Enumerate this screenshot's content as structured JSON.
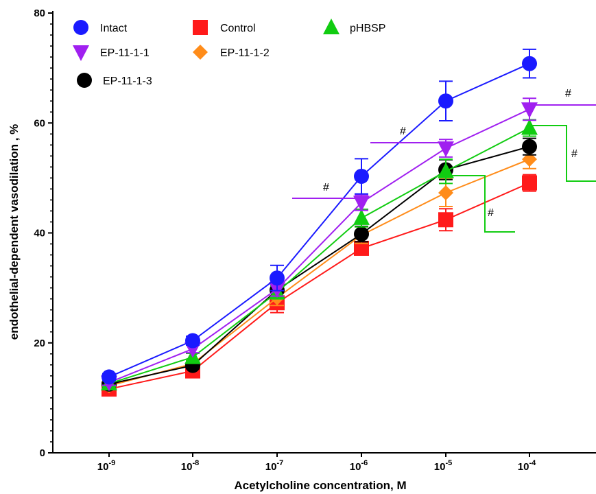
{
  "chart_data": {
    "type": "line",
    "xlabel": "Acetylcholine concentration, M",
    "ylabel": "endothelial-dependent vasodilation , %",
    "ylim": [
      0,
      80
    ],
    "y_ticks": [
      "0",
      "20",
      "40",
      "60",
      "80"
    ],
    "x_ticks": [
      {
        "base": "10",
        "exp": "-9"
      },
      {
        "base": "10",
        "exp": "-8"
      },
      {
        "base": "10",
        "exp": "-7"
      },
      {
        "base": "10",
        "exp": "-6"
      },
      {
        "base": "10",
        "exp": "-5"
      },
      {
        "base": "10",
        "exp": "-4"
      }
    ],
    "x_scale": "log",
    "legend_position": "top-left",
    "series": [
      {
        "name": "Intact",
        "color": "#1a1aff",
        "marker": "circle",
        "values": [
          13.8,
          20.4,
          31.8,
          50.3,
          64.0,
          70.8
        ],
        "errors": [
          0.6,
          0.8,
          2.3,
          3.2,
          3.6,
          2.6
        ]
      },
      {
        "name": "Control",
        "color": "#ff1a1a",
        "marker": "square",
        "values": [
          11.6,
          14.9,
          27.3,
          37.2,
          42.4,
          49.1
        ],
        "errors": [
          0.5,
          0.6,
          1.8,
          1.2,
          2.0,
          1.5
        ]
      },
      {
        "name": "pHBSP",
        "color": "#11cc11",
        "marker": "triangle-up",
        "values": [
          12.6,
          17.4,
          29.2,
          42.7,
          51.2,
          59.1
        ],
        "errors": [
          0.5,
          0.7,
          1.2,
          1.6,
          2.2,
          1.5
        ]
      },
      {
        "name": "EP-11-1-1",
        "color": "#a020f0",
        "marker": "triangle-down",
        "values": [
          12.8,
          18.9,
          29.8,
          45.5,
          55.4,
          62.5
        ],
        "errors": [
          0.5,
          0.7,
          1.3,
          1.4,
          1.6,
          2.0
        ]
      },
      {
        "name": "EP-11-1-2",
        "color": "#ff8c1a",
        "marker": "diamond",
        "values": [
          12.2,
          16.2,
          28.2,
          39.6,
          47.3,
          53.4
        ],
        "errors": [
          0.5,
          0.6,
          1.4,
          1.5,
          2.5,
          1.7
        ]
      },
      {
        "name": "EP-11-1-3",
        "color": "#000000",
        "marker": "circle",
        "values": [
          12.5,
          15.9,
          29.6,
          39.8,
          51.5,
          55.7
        ],
        "errors": [
          0.5,
          0.6,
          1.3,
          1.4,
          1.8,
          1.5
        ]
      }
    ],
    "annotations": [
      {
        "text": "#",
        "color": "#a020f0",
        "x_index": 3,
        "y": 46.2
      },
      {
        "text": "#",
        "color": "#a020f0",
        "x_index": 4,
        "y": 56.4
      },
      {
        "text": "#",
        "color": "#a020f0",
        "x_index": 5,
        "y": 63.3
      },
      {
        "text": "#",
        "color": "#11cc11",
        "x_index": 4,
        "y": 50.4
      },
      {
        "text": "#",
        "color": "#11cc11",
        "x_index": 5,
        "y": 59.6
      }
    ]
  }
}
